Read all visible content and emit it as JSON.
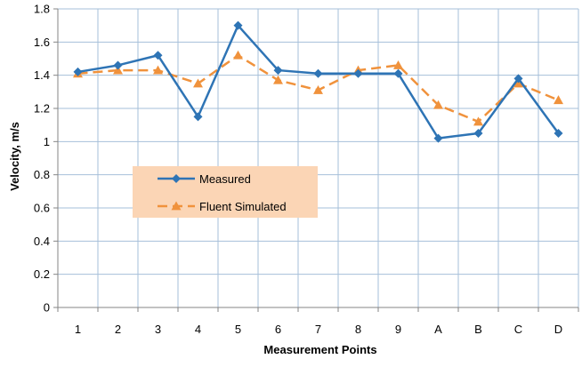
{
  "chart_data": {
    "type": "line",
    "categories": [
      "1",
      "2",
      "3",
      "4",
      "5",
      "6",
      "7",
      "8",
      "9",
      "A",
      "B",
      "C",
      "D"
    ],
    "series": [
      {
        "name": "Measured",
        "values": [
          1.42,
          1.46,
          1.52,
          1.15,
          1.7,
          1.43,
          1.41,
          1.41,
          1.41,
          1.02,
          1.05,
          1.38,
          1.05
        ],
        "color": "#2e74b5",
        "style": "solid",
        "marker": "diamond"
      },
      {
        "name": "Fluent Simulated",
        "values": [
          1.41,
          1.43,
          1.43,
          1.35,
          1.52,
          1.37,
          1.31,
          1.43,
          1.46,
          1.22,
          1.12,
          1.35,
          1.25
        ],
        "color": "#f0923c",
        "style": "dashed",
        "marker": "triangle"
      }
    ],
    "xlabel": "Measurement Points",
    "ylabel": "Velocity, m/s",
    "ylim": [
      0,
      1.8
    ],
    "yticks": [
      "0",
      "0.2",
      "0.4",
      "0.6",
      "0.8",
      "1",
      "1.2",
      "1.4",
      "1.6",
      "1.8"
    ],
    "grid": "vertical and horizontal",
    "legend_position": "left-center",
    "legend_background": "#fbd5b5",
    "grid_color": "#a6bfd9"
  }
}
